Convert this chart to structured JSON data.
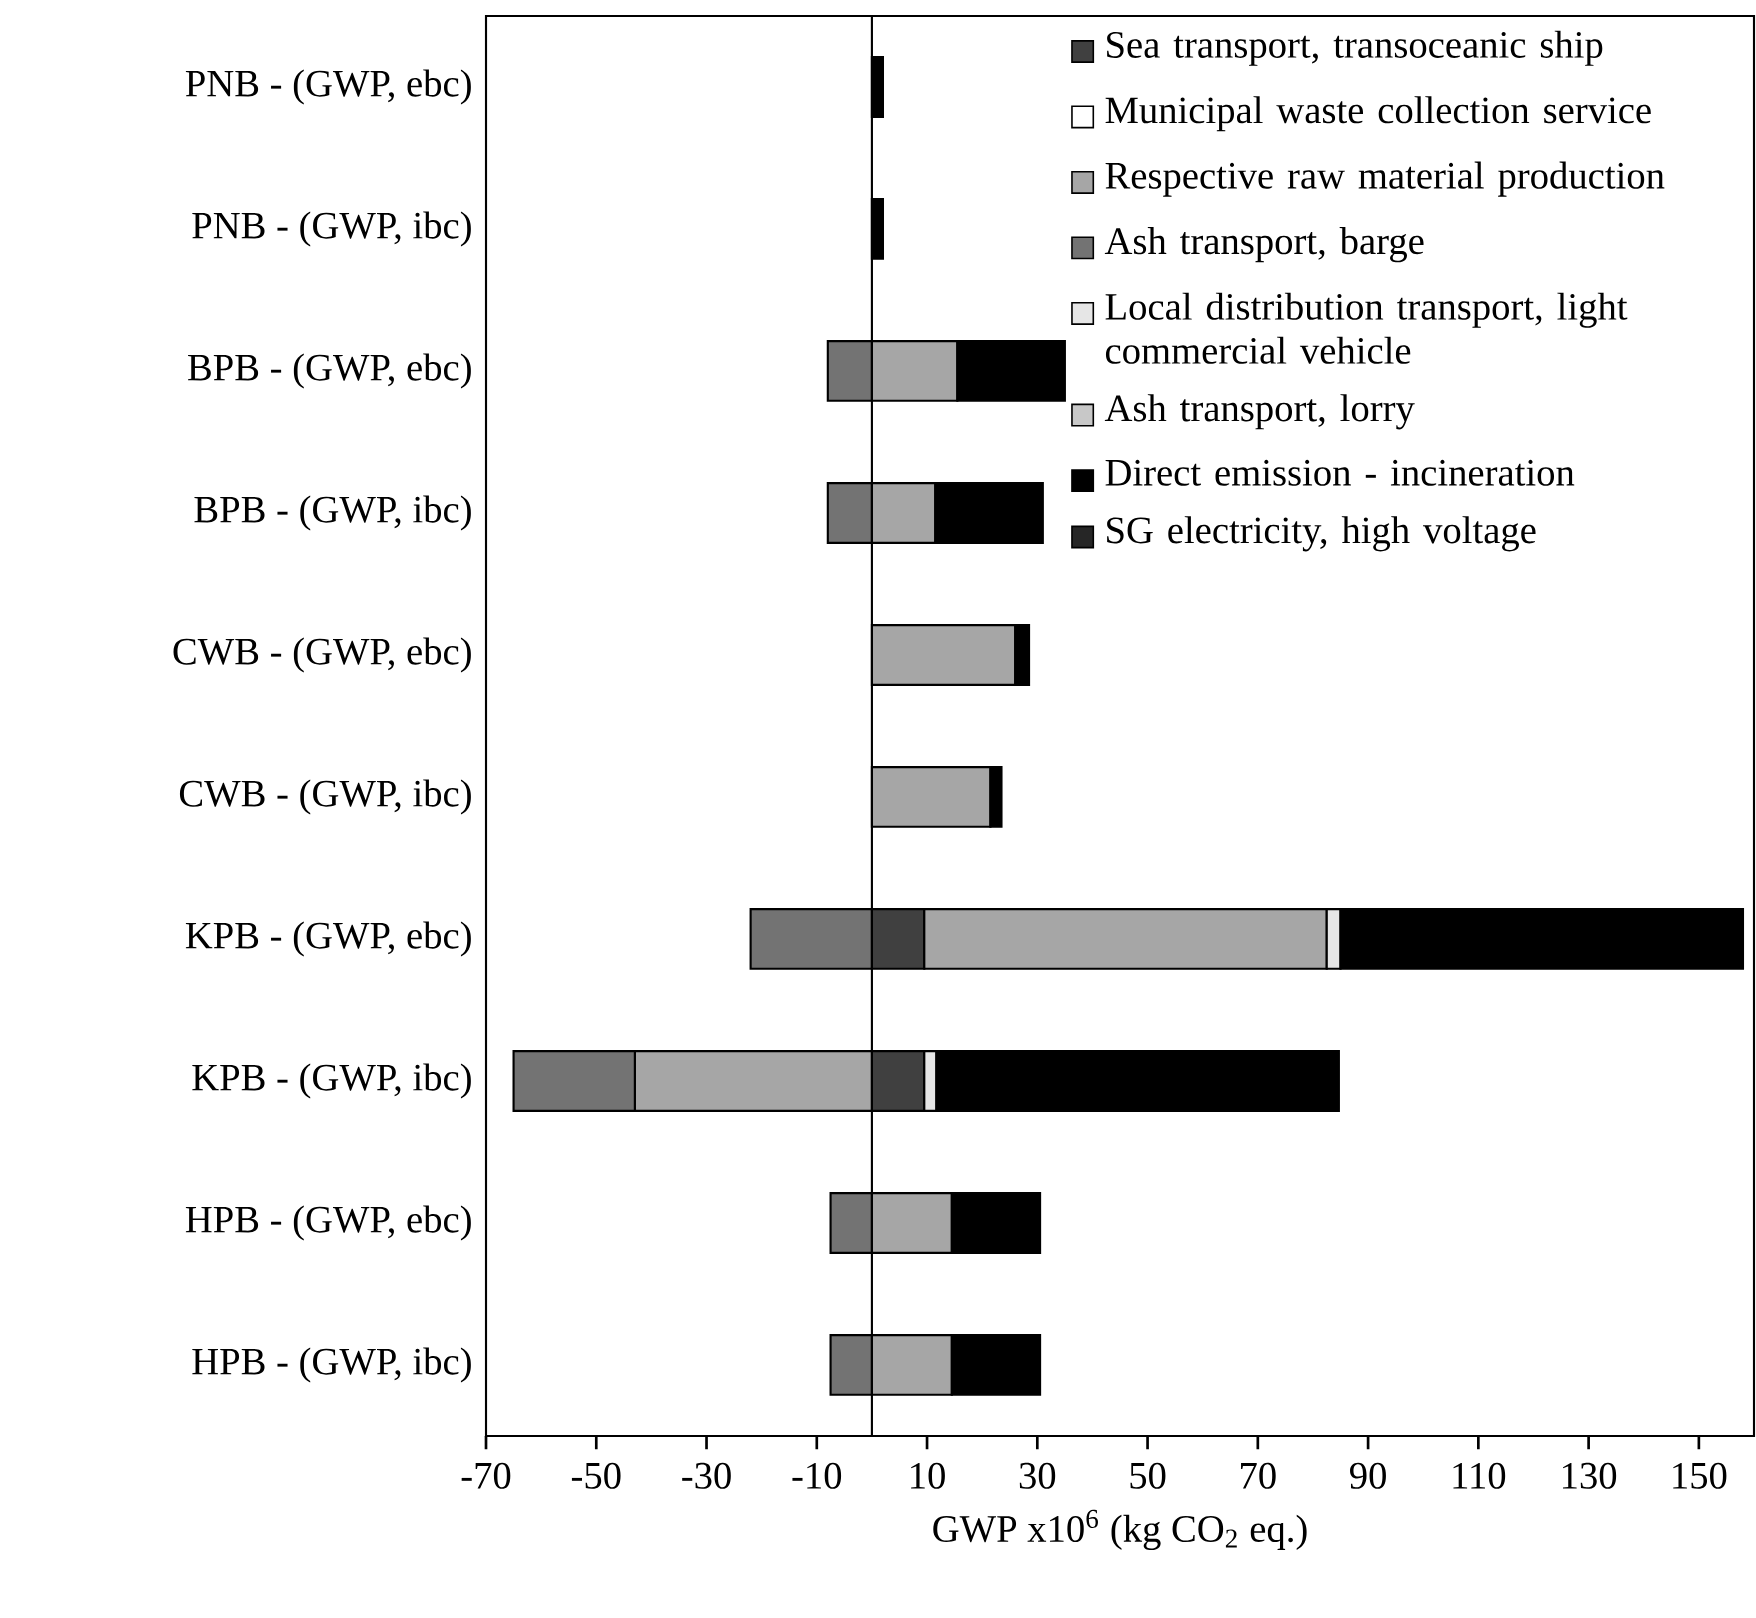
{
  "chart_data": {
    "type": "bar",
    "orientation": "horizontal",
    "stacked": true,
    "xlabel": "GWP x10$^{6}$ (kg CO$_{2}$ eq.)",
    "categories": [
      "PNB - (GWP, ebc)",
      "PNB - (GWP, ibc)",
      "BPB - (GWP, ebc)",
      "BPB - (GWP, ibc)",
      "CWB - (GWP, ebc)",
      "CWB - (GWP, ibc)",
      "KPB - (GWP, ebc)",
      "KPB - (GWP, ibc)",
      "HPB - (GWP, ebc)",
      "HPB - (GWP, ibc)"
    ],
    "series": [
      {
        "name": "Sea transport, transoceanic ship",
        "color": "#404040",
        "values": [
          null,
          null,
          null,
          null,
          null,
          null,
          9.5,
          9.5,
          null,
          null
        ]
      },
      {
        "name": "Municipal waste collection service",
        "color": "#ffffff",
        "values": [
          null,
          null,
          null,
          null,
          null,
          null,
          null,
          null,
          null,
          null
        ]
      },
      {
        "name": "Respective raw material production",
        "color": "#a6a6a6",
        "values": [
          null,
          null,
          15.5,
          11.5,
          26,
          21.5,
          73,
          -43,
          14.5,
          14.5
        ]
      },
      {
        "name": "Ash transport, barge",
        "color": "#737373",
        "values": [
          null,
          null,
          -8,
          -8,
          null,
          null,
          -22,
          -22,
          -7.5,
          -7.5
        ]
      },
      {
        "name": "Local distribution transport, light commercial vehicle",
        "color": "#e6e6e6",
        "values": [
          null,
          null,
          null,
          null,
          null,
          null,
          2.5,
          2.2,
          null,
          null
        ]
      },
      {
        "name": "Ash transport, lorry",
        "color": "#c8c8c8",
        "values": [
          null,
          null,
          null,
          null,
          null,
          null,
          null,
          null,
          null,
          null
        ]
      },
      {
        "name": "Direct emission - incineration",
        "color": "#000000",
        "values": [
          2,
          2,
          19.5,
          19.5,
          2.5,
          2,
          73,
          73,
          16,
          16
        ]
      },
      {
        "name": "SG electricity, high voltage",
        "color": "#262626",
        "values": [
          null,
          null,
          null,
          null,
          null,
          null,
          null,
          null,
          null,
          null
        ]
      }
    ],
    "xlim": [
      -70,
      160
    ],
    "xticks": [
      -70,
      -50,
      -30,
      -10,
      10,
      30,
      50,
      70,
      90,
      110,
      130,
      150
    ],
    "ref_lines": [
      {
        "axis": "x",
        "value": 0
      }
    ],
    "legend": "top right"
  }
}
